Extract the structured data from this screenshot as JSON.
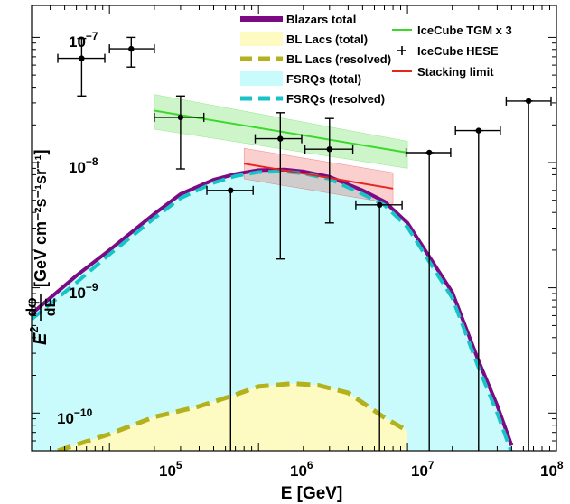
{
  "chart_data": {
    "type": "line",
    "xscale": "log",
    "yscale": "log",
    "xlim": [
      30000,
      100000000
    ],
    "ylim": [
      5e-11,
      1.8e-07
    ],
    "xlabel": "E [GeV]",
    "ylabel": {
      "numerator": "dφ",
      "denominator": "dE",
      "unit": "[GeV cm⁻²s⁻¹sr⁻¹]",
      "prefix": "E",
      "prefix_power": "2"
    },
    "x_ticks": [
      {
        "base": "10",
        "exp": "5",
        "value": 100000
      },
      {
        "base": "10",
        "exp": "6",
        "value": 1000000
      },
      {
        "base": "10",
        "exp": "7",
        "value": 10000000
      },
      {
        "base": "10",
        "exp": "8",
        "value": 100000000
      }
    ],
    "y_ticks": [
      {
        "base": "10",
        "exp": "−10",
        "value": 1e-10
      },
      {
        "base": "10",
        "exp": "−9",
        "value": 1e-09
      },
      {
        "base": "10",
        "exp": "−8",
        "value": 1e-08
      },
      {
        "base": "10",
        "exp": "−7",
        "value": 1e-07
      }
    ],
    "legend": [
      {
        "label": "Blazars total",
        "kind": "thick-line",
        "color": "#7b0a84"
      },
      {
        "label": "BL Lacs (total)",
        "kind": "fill",
        "color": "#fdfbc2"
      },
      {
        "label": "BL Lacs (resolved)",
        "kind": "dashed",
        "color": "#b3b21c"
      },
      {
        "label": "FSRQs (total)",
        "kind": "fill",
        "color": "#c9fbfd"
      },
      {
        "label": "FSRQs (resolved)",
        "kind": "dashed",
        "color": "#17c3c7"
      },
      {
        "label": "IceCube TGM x 3",
        "kind": "line",
        "color": "#3bd92b"
      },
      {
        "label": "IceCube HESE",
        "kind": "cross",
        "color": "#000000"
      },
      {
        "label": "Stacking limit",
        "kind": "line",
        "color": "#e8241f"
      }
    ],
    "series": [
      {
        "name": "Blazars total",
        "color": "#7b0a84",
        "x": [
          30000,
          60000,
          100000,
          200000,
          300000,
          500000,
          700000,
          1000000,
          1500000,
          2000000,
          3000000,
          5000000,
          7000000,
          10000000,
          20000000,
          30000000,
          40000000,
          50000000
        ],
        "y": [
          6.2e-10,
          1.25e-09,
          2e-09,
          3.9e-09,
          5.6e-09,
          7.3e-09,
          8.1e-09,
          8.7e-09,
          8.8e-09,
          8.5e-09,
          7.7e-09,
          6e-09,
          4.9e-09,
          3.3e-09,
          9.2e-10,
          2.6e-10,
          1.15e-10,
          5.5e-11
        ]
      },
      {
        "name": "FSRQs (resolved)",
        "color": "#17c3c7",
        "x": [
          30000,
          60000,
          100000,
          200000,
          300000,
          500000,
          700000,
          1000000,
          1500000,
          2000000,
          3000000,
          5000000,
          7000000,
          10000000,
          20000000,
          30000000,
          40000000,
          50000000
        ],
        "y": [
          5.6e-10,
          1.1e-09,
          1.85e-09,
          3.6e-09,
          5.2e-09,
          6.9e-09,
          7.8e-09,
          8.4e-09,
          8.5e-09,
          8.2e-09,
          7.4e-09,
          5.6e-09,
          4.6e-09,
          3.05e-09,
          8.3e-10,
          2.3e-10,
          1e-10,
          4.8e-11
        ]
      },
      {
        "name": "BL Lacs (resolved)",
        "color": "#b3b21c",
        "x": [
          45000,
          100000,
          200000,
          400000,
          700000,
          1000000,
          1700000,
          2500000,
          4000000,
          7000000,
          10000000
        ],
        "y": [
          5e-11,
          6.8e-11,
          9.3e-11,
          1.13e-10,
          1.4e-10,
          1.63e-10,
          1.72e-10,
          1.67e-10,
          1.45e-10,
          9.2e-11,
          7.2e-11
        ]
      },
      {
        "name": "IceCube TGM x 3",
        "color": "#3bd92b",
        "x": [
          200000,
          10000000
        ],
        "y": [
          2.6e-08,
          1.2e-08
        ],
        "band_upper": [
          3.5e-08,
          1.48e-08
        ],
        "band_lower": [
          1.85e-08,
          9e-09
        ]
      },
      {
        "name": "Stacking limit",
        "color": "#e8241f",
        "x": [
          800000,
          8000000
        ],
        "y": [
          9.8e-09,
          6.2e-09
        ],
        "band_upper": [
          1.3e-08,
          8.3e-09
        ],
        "band_lower": [
          7.4e-09,
          4.7e-09
        ]
      }
    ],
    "hese_points": [
      {
        "x": 65000,
        "y": 6.8e-08,
        "xlo": 45000,
        "xhi": 93000,
        "ylo": 3.4e-08,
        "yhi": 9.8e-08
      },
      {
        "x": 140000,
        "y": 8.1e-08,
        "xlo": 100000,
        "xhi": 200000,
        "ylo": 5.8e-08,
        "yhi": 1e-07
      },
      {
        "x": 300000,
        "y": 2.3e-08,
        "xlo": 200000,
        "xhi": 430000,
        "ylo": 8.9e-09,
        "yhi": 3.4e-08
      },
      {
        "x": 650000,
        "y": 6e-09,
        "xlo": 450000,
        "xhi": 920000,
        "ylo": 4e-11,
        "yhi": 6e-09
      },
      {
        "x": 1400000,
        "y": 1.55e-08,
        "xlo": 950000,
        "xhi": 1950000,
        "ylo": 1.7e-09,
        "yhi": 2.5e-08
      },
      {
        "x": 3000000,
        "y": 1.28e-08,
        "xlo": 2050000,
        "xhi": 4300000,
        "ylo": 3.3e-09,
        "yhi": 2.25e-08
      },
      {
        "x": 6500000,
        "y": 4.6e-09,
        "xlo": 4500000,
        "xhi": 9200000,
        "ylo": 4e-11,
        "yhi": 4.6e-09
      },
      {
        "x": 14000000,
        "y": 1.2e-08,
        "xlo": 9800000,
        "xhi": 19500000,
        "ylo": 4e-11,
        "yhi": 1.2e-08
      },
      {
        "x": 30000000,
        "y": 1.8e-08,
        "xlo": 21000000,
        "xhi": 42000000,
        "ylo": 4e-11,
        "yhi": 1.8e-08
      },
      {
        "x": 65000000,
        "y": 3.1e-08,
        "xlo": 46000000,
        "xhi": 92000000,
        "ylo": 4e-11,
        "yhi": 3.1e-08
      }
    ]
  }
}
